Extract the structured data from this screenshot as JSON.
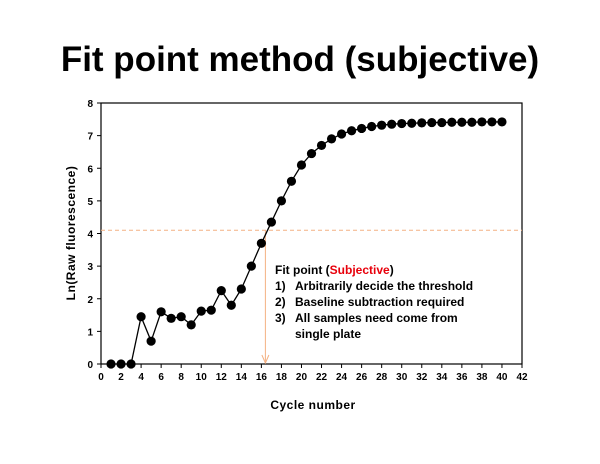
{
  "title": "Fit point method (subjective)",
  "chart_data": {
    "type": "line",
    "xlabel": "Cycle number",
    "ylabel": "Ln(Raw fluorescence)",
    "xlim": [
      0,
      42
    ],
    "ylim": [
      0,
      8
    ],
    "xticks": [
      "0",
      "2",
      "4",
      "6",
      "8",
      "10",
      "12",
      "14",
      "16",
      "18",
      "20",
      "22",
      "24",
      "26",
      "28",
      "30",
      "32",
      "34",
      "36",
      "38",
      "40",
      "42"
    ],
    "yticks": [
      "0",
      "1",
      "2",
      "3",
      "4",
      "5",
      "6",
      "7",
      "8"
    ],
    "grid": false,
    "marker": "filled-circle",
    "line_color": "#000000",
    "series": [
      {
        "x": [
          1,
          2,
          3,
          4,
          5,
          6,
          7,
          8,
          9,
          10,
          11,
          12,
          13,
          14,
          15,
          16,
          17,
          18,
          19,
          20,
          21,
          22,
          23,
          24,
          25,
          26,
          27,
          28,
          29,
          30,
          31,
          32,
          33,
          34,
          35,
          36,
          37,
          38,
          39,
          40
        ],
        "values": [
          0,
          0,
          0,
          1.45,
          0.7,
          1.6,
          1.4,
          1.45,
          1.2,
          1.62,
          1.65,
          2.25,
          1.8,
          2.3,
          3.0,
          3.7,
          4.35,
          5.0,
          5.6,
          6.1,
          6.45,
          6.7,
          6.9,
          7.05,
          7.15,
          7.22,
          7.28,
          7.32,
          7.35,
          7.37,
          7.38,
          7.39,
          7.4,
          7.4,
          7.41,
          7.41,
          7.41,
          7.42,
          7.42,
          7.42
        ]
      }
    ],
    "threshold": {
      "y": 4.1,
      "color": "#f4b183",
      "style": "dashed"
    },
    "fit_point_arrow": {
      "x": 16.4,
      "color": "#f4b183"
    }
  },
  "annotation": {
    "heading_prefix": "Fit point (",
    "heading_highlight": "Subjective",
    "heading_suffix": ")",
    "highlight_color": "#e8000b",
    "items": [
      {
        "num": "1)",
        "text": "Arbitrarily decide the threshold"
      },
      {
        "num": "2)",
        "text": "Baseline subtraction required"
      },
      {
        "num": "3)",
        "text": "All samples need come from"
      },
      {
        "num": "",
        "text": "single plate"
      }
    ]
  }
}
